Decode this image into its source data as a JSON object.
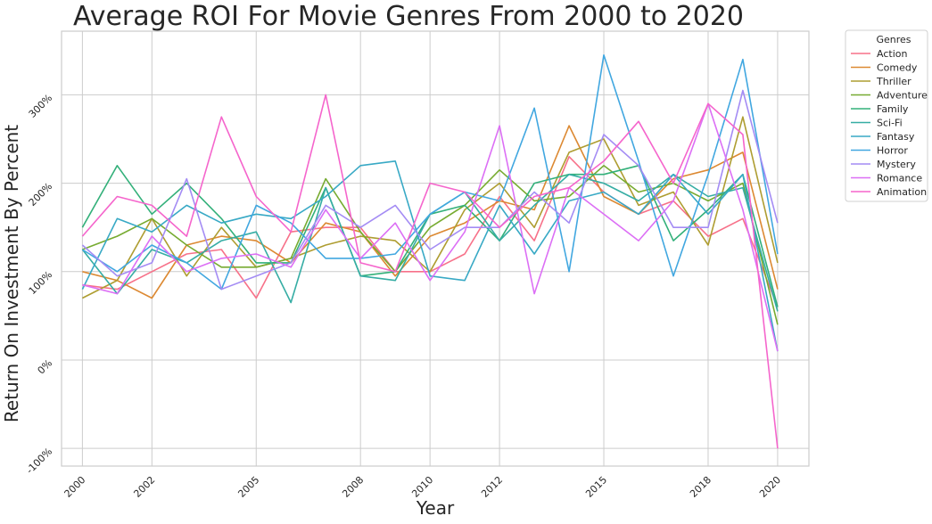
{
  "chart_data": {
    "type": "line",
    "title": "Average ROI For Movie Genres From 2000 to 2020",
    "xlabel": "Year",
    "ylabel": "Return On Investment By Percent",
    "x": [
      2000,
      2001,
      2002,
      2003,
      2004,
      2005,
      2006,
      2007,
      2008,
      2009,
      2010,
      2011,
      2012,
      2013,
      2014,
      2015,
      2016,
      2017,
      2018,
      2019,
      2020
    ],
    "xticks": [
      2000,
      2002,
      2005,
      2008,
      2010,
      2012,
      2015,
      2018,
      2020
    ],
    "xticklabels": [
      "2000",
      "2002",
      "2005",
      "2008",
      "2010",
      "2012",
      "2015",
      "2018",
      "2020"
    ],
    "xlim": [
      1999.4,
      2020.9
    ],
    "ylim": [
      -120,
      372
    ],
    "yticks": [
      -100,
      0,
      100,
      200,
      300
    ],
    "yticklabels": [
      "-100%",
      "0%",
      "100%",
      "200%",
      "300%"
    ],
    "grid": true,
    "legend": {
      "title": "Genres",
      "placement": "outside-top-right"
    },
    "series": [
      {
        "name": "Action",
        "color": "#f77189",
        "values": [
          85,
          80,
          100,
          120,
          125,
          70,
          145,
          150,
          150,
          100,
          100,
          120,
          185,
          135,
          230,
          190,
          165,
          180,
          140,
          160,
          60
        ]
      },
      {
        "name": "Comedy",
        "color": "#dc8932",
        "values": [
          100,
          90,
          70,
          130,
          140,
          135,
          110,
          155,
          145,
          95,
          140,
          155,
          180,
          170,
          265,
          185,
          165,
          205,
          215,
          235,
          80
        ]
      },
      {
        "name": "Thriller",
        "color": "#ae9d31",
        "values": [
          70,
          90,
          160,
          95,
          150,
          105,
          115,
          130,
          140,
          135,
          100,
          170,
          200,
          150,
          235,
          250,
          175,
          190,
          130,
          275,
          110
        ]
      },
      {
        "name": "Adventure",
        "color": "#77ab31",
        "values": [
          125,
          140,
          160,
          130,
          105,
          105,
          115,
          205,
          145,
          100,
          150,
          175,
          215,
          180,
          185,
          220,
          190,
          200,
          180,
          200,
          40
        ]
      },
      {
        "name": "Family",
        "color": "#33b07a",
        "values": [
          150,
          220,
          165,
          200,
          160,
          110,
          110,
          195,
          95,
          100,
          165,
          175,
          135,
          200,
          210,
          210,
          220,
          135,
          170,
          210,
          60
        ]
      },
      {
        "name": "Sci-Fi",
        "color": "#36ada4",
        "values": [
          125,
          75,
          125,
          110,
          135,
          145,
          65,
          195,
          95,
          90,
          165,
          190,
          135,
          175,
          210,
          200,
          180,
          210,
          185,
          195,
          55
        ]
      },
      {
        "name": "Fantasy",
        "color": "#38a9c5",
        "values": [
          80,
          160,
          145,
          175,
          155,
          165,
          160,
          185,
          220,
          225,
          95,
          90,
          175,
          120,
          180,
          190,
          165,
          210,
          165,
          210,
          10
        ]
      },
      {
        "name": "Horror",
        "color": "#41a7e0",
        "values": [
          125,
          100,
          130,
          110,
          80,
          175,
          155,
          115,
          115,
          120,
          165,
          190,
          180,
          285,
          100,
          345,
          225,
          95,
          210,
          340,
          120
        ]
      },
      {
        "name": "Mystery",
        "color": "#a48cf4",
        "values": [
          130,
          95,
          110,
          205,
          80,
          95,
          110,
          175,
          150,
          175,
          125,
          150,
          150,
          190,
          155,
          255,
          220,
          150,
          150,
          305,
          155
        ]
      },
      {
        "name": "Romance",
        "color": "#dc6ff5",
        "values": [
          85,
          75,
          140,
          100,
          115,
          120,
          105,
          170,
          115,
          155,
          90,
          145,
          265,
          75,
          195,
          165,
          135,
          180,
          290,
          170,
          10
        ]
      },
      {
        "name": "Animation",
        "color": "#f565cc",
        "values": [
          140,
          185,
          175,
          140,
          275,
          185,
          145,
          300,
          110,
          100,
          200,
          190,
          150,
          185,
          195,
          225,
          270,
          200,
          290,
          255,
          -100
        ]
      }
    ]
  }
}
